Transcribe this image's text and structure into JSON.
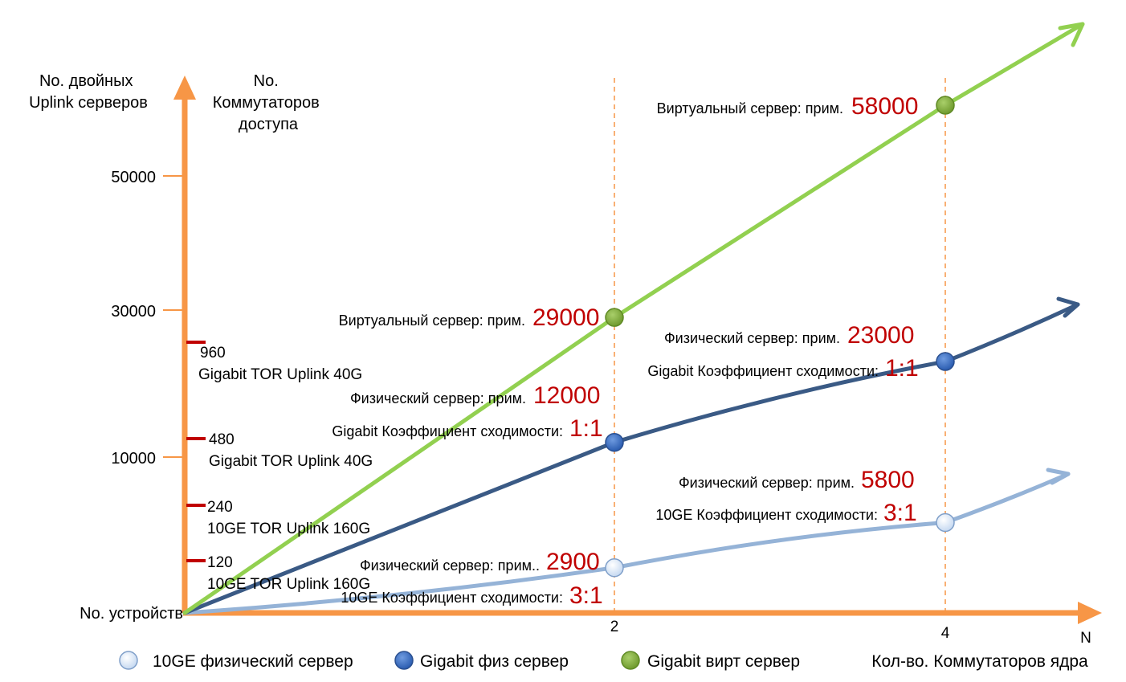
{
  "colors": {
    "axis": "#f79646",
    "green": "#92d050",
    "dark_blue": "#3a5a85",
    "light_blue": "#95b3d7",
    "tor_mark": "#c00000",
    "value_text": "#c00000"
  },
  "chart_data": {
    "type": "line",
    "x_axis_label": "Кол-во. Коммутаторов ядра",
    "x_axis_end_label": "N",
    "x_ticks": [
      "2",
      "4"
    ],
    "y_axis_label_left": "No. двойных Uplink серверов",
    "y_axis_label_right": "No. Коммутаторов доступа",
    "origin_label": "No. устройств",
    "y_ticks": [
      "10000",
      "30000",
      "50000"
    ],
    "access_switch_ticks": [
      {
        "count": "120",
        "label": "10GE TOR Uplink 160G"
      },
      {
        "count": "240",
        "label": "10GE TOR Uplink 160G"
      },
      {
        "count": "480",
        "label": "Gigabit TOR Uplink 40G"
      },
      {
        "count": "960",
        "label": "Gigabit TOR Uplink 40G"
      }
    ],
    "series": [
      {
        "name": "10GE физический сервер",
        "key": "light_blue",
        "x": [
          2,
          4
        ],
        "y": [
          2900,
          5800
        ],
        "annotations": [
          {
            "prefix": "Физический сервер: прим..",
            "value": "2900",
            "ratio_text": "10GE Коэффициент сходимости:",
            "ratio": "3:1"
          },
          {
            "prefix": "Физический сервер: прим.",
            "value": "5800",
            "ratio_text": "10GE Коэффициент сходимости:",
            "ratio": "3:1"
          }
        ]
      },
      {
        "name": "Gigabit физ сервер",
        "key": "dark_blue",
        "x": [
          2,
          4
        ],
        "y": [
          12000,
          23000
        ],
        "annotations": [
          {
            "prefix": "Физический сервер: прим.",
            "value": "12000",
            "ratio_text": "Gigabit Коэффициент сходимости:",
            "ratio": "1:1"
          },
          {
            "prefix": "Физический сервер: прим.",
            "value": "23000",
            "ratio_text": "Gigabit Коэффициент сходимости:",
            "ratio": "1:1"
          }
        ]
      },
      {
        "name": "Gigabit вирт сервер",
        "key": "green",
        "x": [
          2,
          4
        ],
        "y": [
          29000,
          58000
        ],
        "annotations": [
          {
            "prefix": "Виртуальный сервер: прим.",
            "value": "29000"
          },
          {
            "prefix": "Виртуальный сервер: прим.",
            "value": "58000"
          }
        ]
      }
    ],
    "legend": [
      {
        "label": "10GE физический сервер",
        "key": "light_blue"
      },
      {
        "label": "Gigabit физ сервер",
        "key": "dark_blue"
      },
      {
        "label": "Gigabit вирт сервер",
        "key": "green"
      }
    ]
  }
}
